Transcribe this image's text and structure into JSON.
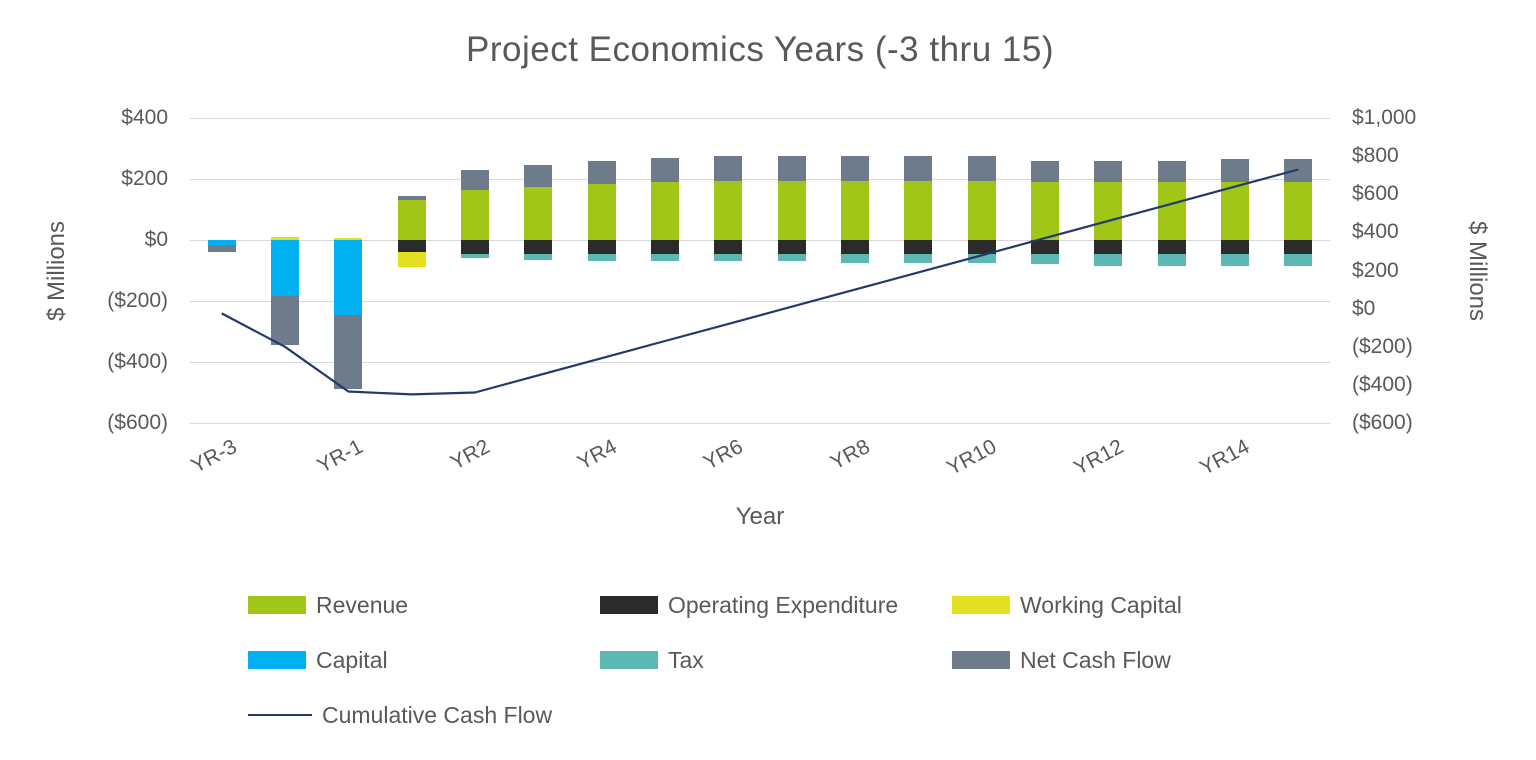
{
  "chart_data": {
    "type": "combo-stacked-bar-line",
    "title": "Project Economics Years (-3 thru 15)",
    "x_axis_label": "Year",
    "grid": true,
    "legend_position": "bottom",
    "categories": [
      "YR-3",
      "YR-2",
      "YR-1",
      "YR1",
      "YR2",
      "YR3",
      "YR4",
      "YR5",
      "YR6",
      "YR7",
      "YR8",
      "YR9",
      "YR10",
      "YR11",
      "YR12",
      "YR13",
      "YR14",
      "YR15"
    ],
    "x_tick_labels": [
      "YR-3",
      "YR-1",
      "YR2",
      "YR4",
      "YR6",
      "YR8",
      "YR10",
      "YR12",
      "YR14"
    ],
    "left_axis": {
      "label": "$ Millions",
      "min": -600,
      "max": 400,
      "tick_step": 200,
      "tick_labels": [
        "$400",
        "$200",
        "$0",
        "($200)",
        "($400)",
        "($600)"
      ]
    },
    "right_axis": {
      "label": "$ Millions",
      "min": -600,
      "max": 1000,
      "tick_step": 200,
      "tick_labels": [
        "$1,000",
        "$800",
        "$600",
        "$400",
        "$200",
        "$0",
        "($200)",
        "($400)",
        "($600)"
      ]
    },
    "series": [
      {
        "name": "Revenue",
        "type": "bar",
        "color": "#a2c617",
        "values": [
          0,
          0,
          0,
          130,
          165,
          175,
          185,
          190,
          195,
          195,
          195,
          195,
          195,
          190,
          190,
          190,
          190,
          190
        ]
      },
      {
        "name": "Operating Expenditure",
        "type": "bar",
        "color": "#2b2b2b",
        "values": [
          0,
          0,
          0,
          -40,
          -45,
          -45,
          -45,
          -45,
          -45,
          -45,
          -45,
          -45,
          -45,
          -45,
          -45,
          -45,
          -45,
          -45
        ]
      },
      {
        "name": "Working Capital",
        "type": "bar",
        "color": "#e3df21",
        "values": [
          0,
          10,
          8,
          -50,
          0,
          0,
          0,
          0,
          0,
          0,
          0,
          0,
          0,
          0,
          0,
          0,
          0,
          0
        ]
      },
      {
        "name": "Capital",
        "type": "bar",
        "color": "#00b0f0",
        "values": [
          -15,
          -185,
          -245,
          0,
          0,
          0,
          0,
          0,
          0,
          0,
          0,
          0,
          0,
          0,
          0,
          0,
          0,
          0
        ]
      },
      {
        "name": "Tax",
        "type": "bar",
        "color": "#5cb8b2",
        "values": [
          0,
          0,
          0,
          0,
          -15,
          -20,
          -25,
          -25,
          -25,
          -25,
          -30,
          -30,
          -30,
          -35,
          -40,
          -40,
          -40,
          -40
        ]
      },
      {
        "name": "Net Cash Flow",
        "type": "bar",
        "color": "#6e7b8b",
        "values": [
          -25,
          -160,
          -245,
          15,
          65,
          70,
          75,
          80,
          80,
          80,
          80,
          80,
          80,
          70,
          70,
          70,
          75,
          75
        ]
      },
      {
        "name": "Cumulative Cash Flow",
        "type": "line",
        "axis": "right",
        "color": "#24396b",
        "values": [
          -25,
          -200,
          -435,
          -450,
          -440,
          -350,
          -260,
          -170,
          -80,
          10,
          100,
          190,
          280,
          370,
          460,
          550,
          640,
          730
        ]
      }
    ]
  },
  "colors": {
    "text": "#595959",
    "gridline": "#d9d9d9"
  }
}
